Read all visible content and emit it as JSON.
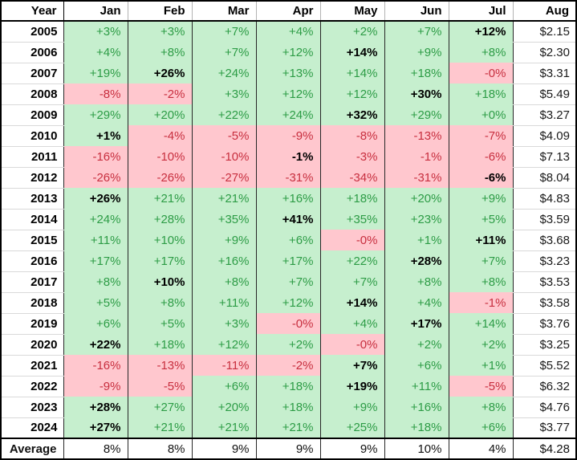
{
  "chart_data": {
    "type": "table",
    "columns": [
      "Year",
      "Jan",
      "Feb",
      "Mar",
      "Apr",
      "May",
      "Jun",
      "Jul",
      "Aug"
    ],
    "rows": [
      {
        "year": "2005",
        "months": [
          "+3%",
          "+3%",
          "+7%",
          "+4%",
          "+2%",
          "+7%",
          "+12%"
        ],
        "best_index": 6,
        "aug": "$2.15"
      },
      {
        "year": "2006",
        "months": [
          "+4%",
          "+8%",
          "+7%",
          "+12%",
          "+14%",
          "+9%",
          "+8%"
        ],
        "best_index": 4,
        "aug": "$2.30"
      },
      {
        "year": "2007",
        "months": [
          "+19%",
          "+26%",
          "+24%",
          "+13%",
          "+14%",
          "+18%",
          "-0%"
        ],
        "best_index": 1,
        "aug": "$3.31"
      },
      {
        "year": "2008",
        "months": [
          "-8%",
          "-2%",
          "+3%",
          "+12%",
          "+12%",
          "+30%",
          "+18%"
        ],
        "best_index": 5,
        "aug": "$5.49"
      },
      {
        "year": "2009",
        "months": [
          "+29%",
          "+20%",
          "+22%",
          "+24%",
          "+32%",
          "+29%",
          "+0%"
        ],
        "best_index": 4,
        "aug": "$3.27"
      },
      {
        "year": "2010",
        "months": [
          "+1%",
          "-4%",
          "-5%",
          "-9%",
          "-8%",
          "-13%",
          "-7%"
        ],
        "best_index": 0,
        "aug": "$4.09"
      },
      {
        "year": "2011",
        "months": [
          "-16%",
          "-10%",
          "-10%",
          "-1%",
          "-3%",
          "-1%",
          "-6%"
        ],
        "best_index": 3,
        "aug": "$7.13"
      },
      {
        "year": "2012",
        "months": [
          "-26%",
          "-26%",
          "-27%",
          "-31%",
          "-34%",
          "-31%",
          "-6%"
        ],
        "best_index": 6,
        "aug": "$8.04"
      },
      {
        "year": "2013",
        "months": [
          "+26%",
          "+21%",
          "+21%",
          "+16%",
          "+18%",
          "+20%",
          "+9%"
        ],
        "best_index": 0,
        "aug": "$4.83"
      },
      {
        "year": "2014",
        "months": [
          "+24%",
          "+28%",
          "+35%",
          "+41%",
          "+35%",
          "+23%",
          "+5%"
        ],
        "best_index": 3,
        "aug": "$3.59"
      },
      {
        "year": "2015",
        "months": [
          "+11%",
          "+10%",
          "+9%",
          "+6%",
          "-0%",
          "+1%",
          "+11%"
        ],
        "best_index": 6,
        "aug": "$3.68"
      },
      {
        "year": "2016",
        "months": [
          "+17%",
          "+17%",
          "+16%",
          "+17%",
          "+22%",
          "+28%",
          "+7%"
        ],
        "best_index": 5,
        "aug": "$3.23"
      },
      {
        "year": "2017",
        "months": [
          "+8%",
          "+10%",
          "+8%",
          "+7%",
          "+7%",
          "+8%",
          "+8%"
        ],
        "best_index": 1,
        "aug": "$3.53"
      },
      {
        "year": "2018",
        "months": [
          "+5%",
          "+8%",
          "+11%",
          "+12%",
          "+14%",
          "+4%",
          "-1%"
        ],
        "best_index": 4,
        "aug": "$3.58"
      },
      {
        "year": "2019",
        "months": [
          "+6%",
          "+5%",
          "+3%",
          "-0%",
          "+4%",
          "+17%",
          "+14%"
        ],
        "best_index": 5,
        "aug": "$3.76"
      },
      {
        "year": "2020",
        "months": [
          "+22%",
          "+18%",
          "+12%",
          "+2%",
          "-0%",
          "+2%",
          "+2%"
        ],
        "best_index": 0,
        "aug": "$3.25"
      },
      {
        "year": "2021",
        "months": [
          "-16%",
          "-13%",
          "-11%",
          "-2%",
          "+7%",
          "+6%",
          "+1%"
        ],
        "best_index": 4,
        "aug": "$5.52"
      },
      {
        "year": "2022",
        "months": [
          "-9%",
          "-5%",
          "+6%",
          "+18%",
          "+19%",
          "+11%",
          "-5%"
        ],
        "best_index": 4,
        "aug": "$6.32"
      },
      {
        "year": "2023",
        "months": [
          "+28%",
          "+27%",
          "+20%",
          "+18%",
          "+9%",
          "+16%",
          "+8%"
        ],
        "best_index": 0,
        "aug": "$4.76"
      },
      {
        "year": "2024",
        "months": [
          "+27%",
          "+21%",
          "+21%",
          "+21%",
          "+25%",
          "+18%",
          "+6%"
        ],
        "best_index": 0,
        "aug": "$3.77"
      }
    ],
    "average_row": {
      "label": "Average",
      "months": [
        "8%",
        "8%",
        "9%",
        "9%",
        "9%",
        "10%",
        "4%"
      ],
      "aug": "$4.28"
    }
  },
  "colors": {
    "positive_fill": "#c6efce",
    "negative_fill": "#ffc7ce",
    "positive_text": "#2d9c46",
    "negative_text": "#c82f3f",
    "light_gridline": "#d9d9d9",
    "column_separator": "#262626",
    "border_black": "#000000"
  }
}
